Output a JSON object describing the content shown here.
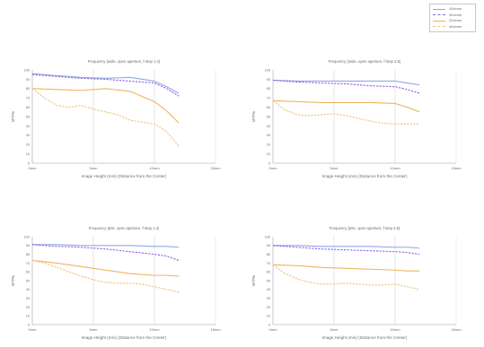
{
  "legend": {
    "entries": [
      {
        "label": "10c/mm",
        "color": "#8fa7e6",
        "dash": "solid"
      },
      {
        "label": "30c/mm",
        "color": "#8b5fe0",
        "dash": "dashed"
      },
      {
        "label": "20c/mm",
        "color": "#f0b35c",
        "dash": "solid"
      },
      {
        "label": "40c/mm",
        "color": "#f0c07a",
        "dash": "dashed"
      }
    ]
  },
  "chart_data": [
    {
      "type": "line",
      "title": "Frequency (wide, open aperture, f-stop 1.4)",
      "xlabel": "Image Height (mm) (Distance from the Center)",
      "ylabel": "MTF%",
      "x_ticks": [
        "0mm",
        "5mm",
        "10mm",
        "15mm"
      ],
      "y_ticks": [
        "0",
        "10",
        "20",
        "30",
        "40",
        "50",
        "60",
        "70",
        "80",
        "90",
        "100"
      ],
      "xlim": [
        0,
        15
      ],
      "ylim": [
        0,
        100
      ],
      "grid": "vertical",
      "series": [
        {
          "color": "#8fa7e6",
          "dash": "solid",
          "x": [
            0,
            2,
            4,
            6,
            8,
            10,
            11,
            12
          ],
          "y": [
            96,
            94,
            92,
            91,
            92,
            88,
            82,
            75
          ]
        },
        {
          "color": "#8b5fe0",
          "dash": "dashed",
          "x": [
            0,
            2,
            4,
            6,
            8,
            10,
            11,
            12
          ],
          "y": [
            95,
            93,
            91,
            90,
            88,
            86,
            80,
            72
          ]
        },
        {
          "color": "#f0b35c",
          "dash": "solid",
          "x": [
            0,
            2,
            4,
            6,
            8,
            10,
            11,
            12
          ],
          "y": [
            80,
            79,
            78,
            80,
            77,
            66,
            56,
            43
          ]
        },
        {
          "color": "#f0c07a",
          "dash": "dashed",
          "x": [
            0,
            1,
            2,
            3,
            4,
            5,
            6,
            7,
            8,
            9,
            10,
            11,
            12
          ],
          "y": [
            80,
            70,
            62,
            60,
            62,
            58,
            55,
            52,
            46,
            44,
            42,
            34,
            18
          ]
        }
      ]
    },
    {
      "type": "line",
      "title": "Frequency (wide, open aperture, f-stop 2.8)",
      "xlabel": "Image Height (mm) (Distance from the Center)",
      "ylabel": "MTF%",
      "x_ticks": [
        "0mm",
        "5mm",
        "10mm",
        "15mm"
      ],
      "y_ticks": [
        "0",
        "10",
        "20",
        "30",
        "40",
        "50",
        "60",
        "70",
        "80",
        "90",
        "100"
      ],
      "xlim": [
        0,
        15
      ],
      "ylim": [
        0,
        100
      ],
      "grid": "vertical",
      "series": [
        {
          "color": "#8fa7e6",
          "dash": "solid",
          "x": [
            0,
            2,
            4,
            6,
            8,
            10,
            11,
            12
          ],
          "y": [
            89,
            88,
            88,
            88,
            88,
            88,
            86,
            84
          ]
        },
        {
          "color": "#8b5fe0",
          "dash": "dashed",
          "x": [
            0,
            2,
            4,
            6,
            8,
            10,
            11,
            12
          ],
          "y": [
            89,
            87,
            86,
            85,
            83,
            82,
            79,
            75
          ]
        },
        {
          "color": "#f0b35c",
          "dash": "solid",
          "x": [
            0,
            2,
            4,
            6,
            8,
            10,
            11,
            12
          ],
          "y": [
            67,
            66,
            65,
            65,
            65,
            64,
            60,
            55
          ]
        },
        {
          "color": "#f0c07a",
          "dash": "dashed",
          "x": [
            0,
            1,
            2,
            3,
            4,
            5,
            6,
            7,
            8,
            9,
            10,
            11,
            12
          ],
          "y": [
            67,
            57,
            52,
            51,
            52,
            53,
            51,
            48,
            45,
            43,
            42,
            42,
            42
          ]
        }
      ]
    },
    {
      "type": "line",
      "title": "Frequency (tele, open aperture, f-stop 1.4)",
      "xlabel": "Image Height (mm) (Distance from the Center)",
      "ylabel": "MTF%",
      "x_ticks": [
        "0mm",
        "5mm",
        "10mm",
        "15mm"
      ],
      "y_ticks": [
        "0",
        "10",
        "20",
        "30",
        "40",
        "50",
        "60",
        "70",
        "80",
        "90",
        "100"
      ],
      "xlim": [
        0,
        15
      ],
      "ylim": [
        0,
        100
      ],
      "grid": "vertical",
      "series": [
        {
          "color": "#8fa7e6",
          "dash": "solid",
          "x": [
            0,
            2,
            4,
            6,
            8,
            10,
            11,
            12
          ],
          "y": [
            91,
            91,
            90,
            90,
            90,
            89,
            89,
            88
          ]
        },
        {
          "color": "#8b5fe0",
          "dash": "dashed",
          "x": [
            0,
            2,
            4,
            6,
            8,
            10,
            11,
            12
          ],
          "y": [
            91,
            89,
            88,
            86,
            83,
            80,
            78,
            73
          ]
        },
        {
          "color": "#f0b35c",
          "dash": "solid",
          "x": [
            0,
            2,
            4,
            6,
            8,
            10,
            11,
            12
          ],
          "y": [
            73,
            70,
            66,
            62,
            58,
            56,
            56,
            55
          ]
        },
        {
          "color": "#f0c07a",
          "dash": "dashed",
          "x": [
            0,
            1,
            2,
            3,
            4,
            5,
            6,
            7,
            8,
            9,
            10,
            11,
            12
          ],
          "y": [
            73,
            70,
            65,
            60,
            55,
            51,
            48,
            47,
            47,
            46,
            43,
            40,
            37
          ]
        }
      ]
    },
    {
      "type": "line",
      "title": "Frequency (tele, open aperture, f-stop 2.8)",
      "xlabel": "Image Height (mm) (Distance from the Center)",
      "ylabel": "MTF%",
      "x_ticks": [
        "0mm",
        "5mm",
        "10mm",
        "15mm"
      ],
      "y_ticks": [
        "0",
        "10",
        "20",
        "30",
        "40",
        "50",
        "60",
        "70",
        "80",
        "90",
        "100"
      ],
      "xlim": [
        0,
        15
      ],
      "ylim": [
        0,
        100
      ],
      "grid": "vertical",
      "series": [
        {
          "color": "#8fa7e6",
          "dash": "solid",
          "x": [
            0,
            2,
            4,
            6,
            8,
            10,
            11,
            12
          ],
          "y": [
            90,
            90,
            89,
            89,
            89,
            88,
            88,
            87
          ]
        },
        {
          "color": "#8b5fe0",
          "dash": "dashed",
          "x": [
            0,
            2,
            4,
            6,
            8,
            10,
            11,
            12
          ],
          "y": [
            90,
            88,
            86,
            85,
            84,
            83,
            82,
            80
          ]
        },
        {
          "color": "#f0b35c",
          "dash": "solid",
          "x": [
            0,
            2,
            4,
            6,
            8,
            10,
            11,
            12
          ],
          "y": [
            68,
            67,
            65,
            64,
            63,
            62,
            61,
            61
          ]
        },
        {
          "color": "#f0c07a",
          "dash": "dashed",
          "x": [
            0,
            1,
            2,
            3,
            4,
            5,
            6,
            7,
            8,
            9,
            10,
            11,
            12
          ],
          "y": [
            68,
            58,
            52,
            48,
            46,
            46,
            47,
            46,
            45,
            45,
            46,
            43,
            40
          ]
        }
      ]
    }
  ]
}
